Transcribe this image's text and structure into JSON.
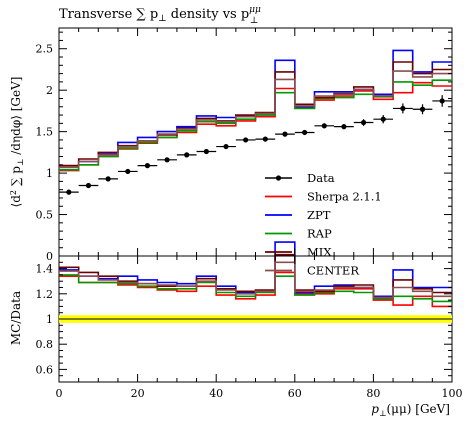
{
  "title": "Transverse ∑ p⊥ density vs p⊥^μμ",
  "title_parts": {
    "main": "Transverse ∑ p",
    "sub1": "⊥",
    "mid": " density vs p",
    "sub2": "⊥",
    "sup2": "μμ"
  },
  "ylabel_top": "⟨d² ∑ p⊥ / dηdφ⟩ [GeV]",
  "ylabel_top_parts": {
    "a": "⟨d",
    "b": "2",
    "c": " ∑ p",
    "d": "⊥",
    "e": " /dηdφ⟩ [GeV]"
  },
  "ylabel_bottom": "MC/Data",
  "xlabel": "p⊥(μμ) [GeV]",
  "xlabel_parts": {
    "a": "p",
    "b": "⊥",
    "c": "(μμ) [GeV]"
  },
  "chart_data": [
    {
      "type": "line",
      "panel": "main",
      "x_edges": [
        0,
        5,
        10,
        15,
        20,
        25,
        30,
        35,
        40,
        45,
        50,
        55,
        60,
        65,
        70,
        75,
        80,
        85,
        90,
        95,
        100
      ],
      "xlim": [
        0,
        100
      ],
      "ylim": [
        0,
        2.75
      ],
      "x_ticks": [
        0,
        20,
        40,
        60,
        80,
        100
      ],
      "y_ticks": [
        0,
        0.5,
        1,
        1.5,
        2,
        2.5
      ],
      "y_tick_labels": [
        "0",
        "0.5",
        "1",
        "1.5",
        "2",
        "2.5"
      ],
      "legend_position": "right-center",
      "data": {
        "name": "Data",
        "color": "#000000",
        "x": [
          2.5,
          7.5,
          12.5,
          17.5,
          22.5,
          27.5,
          32.5,
          37.5,
          42.5,
          47.5,
          52.5,
          57.5,
          62.5,
          67.5,
          72.5,
          77.5,
          82.5,
          87.5,
          92.5,
          97.5
        ],
        "y": [
          0.77,
          0.85,
          0.93,
          1.02,
          1.09,
          1.16,
          1.22,
          1.26,
          1.32,
          1.4,
          1.41,
          1.47,
          1.49,
          1.57,
          1.56,
          1.61,
          1.65,
          1.78,
          1.77,
          1.87
        ],
        "yerr": [
          0.01,
          0.01,
          0.01,
          0.01,
          0.01,
          0.01,
          0.01,
          0.01,
          0.01,
          0.015,
          0.015,
          0.02,
          0.02,
          0.03,
          0.03,
          0.04,
          0.05,
          0.06,
          0.06,
          0.07
        ]
      },
      "series": [
        {
          "name": "Sherpa 2.1.1",
          "color": "#ff0000",
          "values": [
            1.03,
            1.1,
            1.2,
            1.29,
            1.36,
            1.43,
            1.49,
            1.59,
            1.57,
            1.63,
            1.68,
            2.02,
            1.79,
            1.88,
            1.93,
            1.99,
            1.89,
            1.97,
            2.09,
            2.05
          ]
        },
        {
          "name": "ZPT",
          "color": "#0000ff",
          "values": [
            1.07,
            1.14,
            1.23,
            1.37,
            1.43,
            1.5,
            1.56,
            1.69,
            1.67,
            1.69,
            1.72,
            2.36,
            1.8,
            1.98,
            1.98,
            2.01,
            1.95,
            2.48,
            2.22,
            2.34
          ]
        },
        {
          "name": "RAP",
          "color": "#009900",
          "values": [
            1.04,
            1.1,
            1.2,
            1.3,
            1.37,
            1.43,
            1.51,
            1.62,
            1.6,
            1.65,
            1.7,
            1.97,
            1.78,
            1.9,
            1.91,
            1.95,
            1.92,
            2.1,
            2.06,
            2.12
          ]
        },
        {
          "name": "MIX",
          "color": "#6b0000",
          "values": [
            1.09,
            1.17,
            1.25,
            1.33,
            1.39,
            1.46,
            1.54,
            1.66,
            1.63,
            1.7,
            1.73,
            2.22,
            1.83,
            1.91,
            1.96,
            2.04,
            1.93,
            2.34,
            2.2,
            2.25
          ]
        },
        {
          "name": "CENTER",
          "color": "#8b4f4f",
          "values": [
            1.07,
            1.14,
            1.22,
            1.32,
            1.39,
            1.47,
            1.53,
            1.64,
            1.62,
            1.68,
            1.72,
            2.13,
            1.81,
            1.93,
            1.95,
            2.01,
            1.93,
            2.23,
            2.16,
            2.2
          ]
        }
      ]
    },
    {
      "type": "line",
      "panel": "ratio",
      "x_edges": [
        0,
        5,
        10,
        15,
        20,
        25,
        30,
        35,
        40,
        45,
        50,
        55,
        60,
        65,
        70,
        75,
        80,
        85,
        90,
        95,
        100
      ],
      "xlim": [
        0,
        100
      ],
      "ylim": [
        0.5,
        1.5
      ],
      "x_ticks": [
        0,
        20,
        40,
        60,
        80,
        100
      ],
      "x_tick_labels": [
        "0",
        "20",
        "40",
        "60",
        "80",
        "100"
      ],
      "y_ticks": [
        0.6,
        0.8,
        1,
        1.2,
        1.4
      ],
      "y_tick_labels": [
        "0.6",
        "0.8",
        "1",
        "1.2",
        "1.4"
      ],
      "reference": {
        "value": 1.0,
        "band": [
          0.97,
          1.03
        ],
        "band_color": "#ffff00"
      },
      "series": [
        {
          "name": "Sherpa 2.1.1",
          "color": "#ff0000",
          "values": [
            1.34,
            1.29,
            1.29,
            1.27,
            1.25,
            1.23,
            1.22,
            1.26,
            1.19,
            1.16,
            1.19,
            1.37,
            1.2,
            1.2,
            1.24,
            1.24,
            1.15,
            1.11,
            1.18,
            1.1
          ]
        },
        {
          "name": "ZPT",
          "color": "#0000ff",
          "values": [
            1.39,
            1.34,
            1.32,
            1.34,
            1.31,
            1.29,
            1.28,
            1.34,
            1.26,
            1.21,
            1.22,
            1.61,
            1.21,
            1.26,
            1.27,
            1.25,
            1.18,
            1.39,
            1.25,
            1.25
          ]
        },
        {
          "name": "RAP",
          "color": "#009900",
          "values": [
            1.35,
            1.29,
            1.29,
            1.28,
            1.26,
            1.24,
            1.24,
            1.29,
            1.21,
            1.18,
            1.21,
            1.34,
            1.19,
            1.21,
            1.22,
            1.21,
            1.16,
            1.18,
            1.16,
            1.14
          ]
        },
        {
          "name": "MIX",
          "color": "#6b0000",
          "values": [
            1.41,
            1.37,
            1.34,
            1.3,
            1.28,
            1.26,
            1.26,
            1.32,
            1.24,
            1.22,
            1.23,
            1.51,
            1.23,
            1.22,
            1.26,
            1.27,
            1.17,
            1.31,
            1.24,
            1.21
          ]
        },
        {
          "name": "CENTER",
          "color": "#8b4f4f",
          "values": [
            1.38,
            1.34,
            1.31,
            1.29,
            1.28,
            1.27,
            1.26,
            1.3,
            1.23,
            1.2,
            1.22,
            1.45,
            1.22,
            1.23,
            1.25,
            1.25,
            1.17,
            1.25,
            1.22,
            1.18
          ]
        }
      ]
    }
  ]
}
